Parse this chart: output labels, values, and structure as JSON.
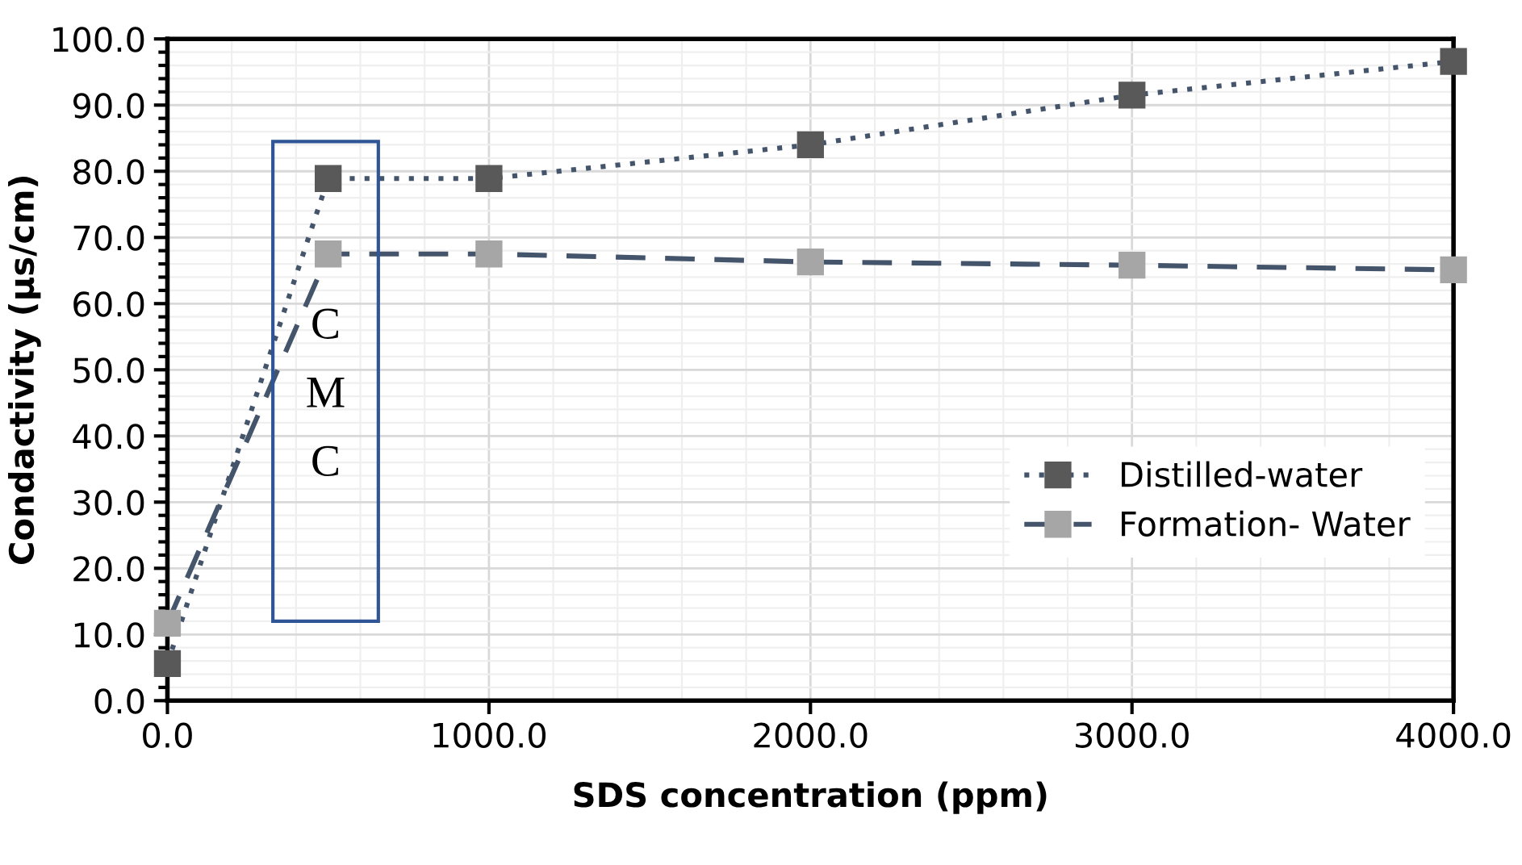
{
  "chart_data": {
    "type": "line",
    "xlabel": "SDS concentration (ppm)",
    "ylabel": "Condactivity (µs/cm)",
    "x": [
      0,
      500,
      1000,
      2000,
      3000,
      4000
    ],
    "series": [
      {
        "name": "Distilled-water",
        "color": "#595959",
        "values": [
          5.6,
          78.9,
          78.9,
          84,
          91.5,
          96.6
        ],
        "line_style": "dotted",
        "marker": "square"
      },
      {
        "name": "Formation- Water",
        "color": "#a6a6a6",
        "values": [
          11.7,
          67.5,
          67.5,
          66.3,
          65.8,
          65.1
        ],
        "line_style": "dashed",
        "marker": "square"
      }
    ],
    "xlim": [
      0,
      4000
    ],
    "xticks": [
      {
        "value": 0,
        "label": "0.0"
      },
      {
        "value": 1000,
        "label": "1000.0"
      },
      {
        "value": 2000,
        "label": "2000.0"
      },
      {
        "value": 3000,
        "label": "3000.0"
      },
      {
        "value": 4000,
        "label": "4000.0"
      }
    ],
    "ylim": [
      0,
      100
    ],
    "yticks": [
      {
        "value": 0,
        "label": "0.0"
      },
      {
        "value": 10,
        "label": "10.0"
      },
      {
        "value": 20,
        "label": "20.0"
      },
      {
        "value": 30,
        "label": "30.0"
      },
      {
        "value": 40,
        "label": "40.0"
      },
      {
        "value": 50,
        "label": "50.0"
      },
      {
        "value": 60,
        "label": "60.0"
      },
      {
        "value": 70,
        "label": "70.0"
      },
      {
        "value": 80,
        "label": "80.0"
      },
      {
        "value": 90,
        "label": "90.0"
      },
      {
        "value": 100,
        "label": "100.0"
      }
    ],
    "grid": true,
    "legend": "right",
    "annotations": [
      "C\nM\nC"
    ]
  }
}
